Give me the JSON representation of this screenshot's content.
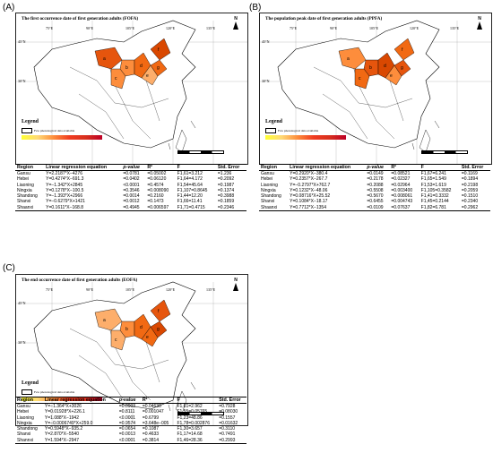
{
  "panels": [
    {
      "label": "(A)",
      "title": "The first occurrence date of first generation adults (FOFA)",
      "legend": {
        "title": "Legend",
        "note": "Few phenological data available"
      },
      "longitudes": [
        "75°E",
        "90°E",
        "105°E",
        "120°E",
        "135°E"
      ],
      "latitudes": [
        "45°N",
        "30°N"
      ],
      "table": {
        "headers": [
          "Region",
          "Linear regression equation",
          "p-value",
          "R²",
          "F",
          "Std. Error"
        ],
        "rows": [
          [
            "Gansu",
            "Y=2.2187*X−4276",
            "=0.0781",
            "=0.05002",
            "F1,61=3.212",
            "=1.236"
          ],
          [
            "Hebei",
            "Y=0.4274*X−691.3",
            "=0.0402",
            "=0.06120",
            "F1,64=4.172",
            "=0.2092"
          ],
          [
            "Liaoning",
            "Y=−1.342*X+2845",
            "<0.0001",
            "=0.4574",
            "F1,54=45.64",
            "=0.1987"
          ],
          [
            "Ningxia",
            "Y=0.1278*X−100.5",
            "=0.3546",
            "=0.008090",
            "F1,107=0.8645",
            "=0.1374"
          ],
          [
            "Shandong",
            "Y=−1.393*X+2966",
            "=0.0014",
            "=0.2160",
            "F1,44=12.20",
            "=0.3988"
          ],
          [
            "Shanxi",
            "Y=−0.6279*X+1421",
            "=0.0012",
            "=0.1473",
            "F1,66=11.41",
            "=0.1859"
          ],
          [
            "Shaanxi",
            "Y=0.1611*X−168.8",
            "=0.4945",
            "=0.006597",
            "F1,71=0.4715",
            "=0.2346"
          ]
        ]
      }
    },
    {
      "label": "(B)",
      "title": "The population peak date of first generation adults (PPFA)",
      "legend": {
        "title": "Legend",
        "note": "Few phenological data available"
      },
      "longitudes": [
        "75°E",
        "90°E",
        "105°E",
        "120°E",
        "135°E"
      ],
      "latitudes": [
        "45°N",
        "30°N"
      ],
      "table": {
        "headers": [
          "Region",
          "Linear regression equation",
          "p-value",
          "R²",
          "F",
          "Std. Error"
        ],
        "rows": [
          [
            "Gansu",
            "Y=0.2920*X−380.4",
            "=0.0149",
            "=0.08521",
            "F1,67=6.241",
            "=0.1169"
          ],
          [
            "Hebei",
            "Y=0.2357*X−267.7",
            "=0.2178",
            "=0.02327",
            "F1,65=1.549",
            "=0.1894"
          ],
          [
            "Liaoning",
            "Y=−0.2797*X+762.7",
            "=0.2088",
            "=0.02964",
            "F1,53=1.619",
            "=0.2198"
          ],
          [
            "Ningxia",
            "Y=0.1232*X−48.06",
            "=0.5508",
            "=0.003400",
            "F1,105=0.3582",
            "=0.2059"
          ],
          [
            "Shandong",
            "Y=0.08716*X+25.52",
            "=0.5670",
            "=0.008061",
            "F1,41=0.3332",
            "=0.1510"
          ],
          [
            "Shanxi",
            "Y=0.1084*X−18.17",
            "=0.6455",
            "=0.004743",
            "F1,45=0.2144",
            "=0.2340"
          ],
          [
            "Shaanxi",
            "Y=0.7712*X−1354",
            "=0.0109",
            "=0.07637",
            "F1,82=6.781",
            "=0.2962"
          ]
        ]
      }
    },
    {
      "label": "(C)",
      "title": "The end occurrence date of first generation adults (EOFA)",
      "legend": {
        "title": "Legend",
        "note": "Few phenological data available"
      },
      "longitudes": [
        "75°E",
        "90°E",
        "105°E",
        "120°E",
        "135°E"
      ],
      "latitudes": [
        "45°N",
        "30°N"
      ],
      "table": {
        "headers": [
          "Region",
          "Linear regression equation",
          "p-value",
          "R²",
          "F",
          "Std. Error"
        ],
        "rows": [
          [
            "Gansu",
            "Y=−1.364*X+3026",
            "=0.0903",
            "=0.04630",
            "F1,61=2.962",
            "=0.7928"
          ],
          [
            "Hebei",
            "Y=0.01928*X+226.1",
            "=0.8111",
            "=0.001047",
            "F1,55=0.05765",
            "=0.08030"
          ],
          [
            "Liaoning",
            "Y=1.088*X−1942",
            "<0.0001",
            "=0.6799",
            "F1,23=48.86",
            "=0.1557"
          ],
          [
            "Ningxia",
            "Y=−0.0006749*X+259.0",
            "=0.9574",
            "=3.648e−005",
            "F1,78=0.002876",
            "=0.01632"
          ],
          [
            "Shandong",
            "Y=0.5948*X−935.2",
            "=0.0654",
            "=0.1087",
            "F1,30=3.657",
            "=0.3110"
          ],
          [
            "Shanxi",
            "Y=2.870*X−5540",
            "=0.0013",
            "=0.4633",
            "F1,17=14.68",
            "=0.7491"
          ],
          [
            "Shannxi",
            "Y=1.594*X−2947",
            "<0.0001",
            "=0.3814",
            "F1,46=28.36",
            "=0.2993"
          ]
        ]
      }
    }
  ],
  "colors": {
    "ramp_low": "#ffff33",
    "ramp_high": "#bd0026",
    "region_fill": "#f16913",
    "region_dark": "#d94801"
  }
}
